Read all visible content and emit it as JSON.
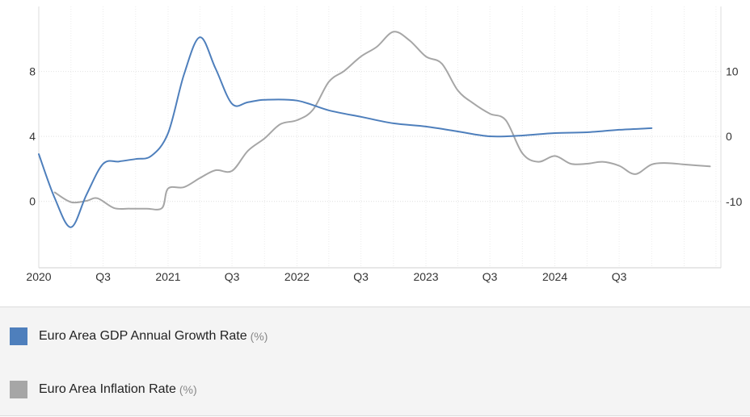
{
  "chart_data": {
    "type": "line",
    "x_tick_labels": [
      "2020",
      "Q3",
      "2021",
      "Q3",
      "2022",
      "Q3",
      "2023",
      "Q3",
      "2024",
      "Q3"
    ],
    "x_range": [
      "2020-01-01",
      "2025-04-15"
    ],
    "y_left": {
      "ticks": [
        0,
        4,
        8
      ],
      "range": [
        -4.1,
        12.0
      ]
    },
    "y_right": {
      "ticks": [
        -10,
        0,
        10
      ],
      "range": [
        -20.2,
        20.0
      ]
    },
    "grid": true,
    "legend_position": "bottom",
    "series": [
      {
        "name": "Euro Area GDP Annual Growth Rate",
        "unit": "(%)",
        "color": "#4e7fbc",
        "axis": "left",
        "points": [
          [
            "2020-01-01",
            2.9
          ],
          [
            "2020-02-15",
            0.2
          ],
          [
            "2020-04-01",
            -1.6
          ],
          [
            "2020-05-15",
            0.4
          ],
          [
            "2020-07-01",
            2.3
          ],
          [
            "2020-08-15",
            2.45
          ],
          [
            "2020-10-01",
            2.6
          ],
          [
            "2020-11-15",
            2.8
          ],
          [
            "2021-01-01",
            4.2
          ],
          [
            "2021-02-15",
            7.8
          ],
          [
            "2021-04-01",
            10.1
          ],
          [
            "2021-05-15",
            8.2
          ],
          [
            "2021-07-01",
            6.0
          ],
          [
            "2021-08-15",
            6.1
          ],
          [
            "2021-10-01",
            6.25
          ],
          [
            "2022-01-01",
            6.2
          ],
          [
            "2022-04-01",
            5.6
          ],
          [
            "2022-07-01",
            5.2
          ],
          [
            "2022-10-01",
            4.8
          ],
          [
            "2023-01-01",
            4.6
          ],
          [
            "2023-04-01",
            4.3
          ],
          [
            "2023-07-01",
            4.0
          ],
          [
            "2023-10-01",
            4.05
          ],
          [
            "2024-01-01",
            4.2
          ],
          [
            "2024-04-01",
            4.25
          ],
          [
            "2024-07-01",
            4.4
          ],
          [
            "2024-10-01",
            4.5
          ]
        ]
      },
      {
        "name": "Euro Area Inflation Rate",
        "unit": "(%)",
        "color": "#a6a6a6",
        "axis": "right",
        "points": [
          [
            "2020-02-15",
            -8.6
          ],
          [
            "2020-04-01",
            -10.1
          ],
          [
            "2020-05-15",
            -9.9
          ],
          [
            "2020-06-15",
            -9.5
          ],
          [
            "2020-08-01",
            -11.0
          ],
          [
            "2020-09-15",
            -11.1
          ],
          [
            "2020-11-01",
            -11.1
          ],
          [
            "2020-12-15",
            -11.0
          ],
          [
            "2021-01-01",
            -8.0
          ],
          [
            "2021-02-15",
            -7.8
          ],
          [
            "2021-04-01",
            -6.4
          ],
          [
            "2021-05-15",
            -5.2
          ],
          [
            "2021-07-01",
            -5.3
          ],
          [
            "2021-08-15",
            -2.2
          ],
          [
            "2021-10-01",
            -0.3
          ],
          [
            "2021-11-15",
            1.9
          ],
          [
            "2022-01-01",
            2.5
          ],
          [
            "2022-02-15",
            4.1
          ],
          [
            "2022-04-01",
            8.4
          ],
          [
            "2022-05-15",
            10.1
          ],
          [
            "2022-07-01",
            12.3
          ],
          [
            "2022-08-15",
            13.8
          ],
          [
            "2022-10-01",
            16.1
          ],
          [
            "2022-11-15",
            14.8
          ],
          [
            "2023-01-01",
            12.3
          ],
          [
            "2023-02-15",
            11.2
          ],
          [
            "2023-04-01",
            7.1
          ],
          [
            "2023-05-15",
            5.1
          ],
          [
            "2023-07-01",
            3.5
          ],
          [
            "2023-08-15",
            2.5
          ],
          [
            "2023-10-01",
            -2.6
          ],
          [
            "2023-11-15",
            -3.9
          ],
          [
            "2024-01-01",
            -3.0
          ],
          [
            "2024-02-15",
            -4.2
          ],
          [
            "2024-04-01",
            -4.2
          ],
          [
            "2024-05-15",
            -3.9
          ],
          [
            "2024-07-01",
            -4.5
          ],
          [
            "2024-08-15",
            -5.8
          ],
          [
            "2024-10-01",
            -4.3
          ],
          [
            "2024-11-15",
            -4.1
          ],
          [
            "2025-01-01",
            -4.3
          ],
          [
            "2025-03-15",
            -4.6
          ]
        ]
      }
    ]
  },
  "legend": {
    "items": [
      {
        "label": "Euro Area GDP Annual Growth Rate",
        "unit": "(%)",
        "color": "#4e7fbc"
      },
      {
        "label": "Euro Area Inflation Rate",
        "unit": "(%)",
        "color": "#a6a6a6"
      }
    ]
  }
}
